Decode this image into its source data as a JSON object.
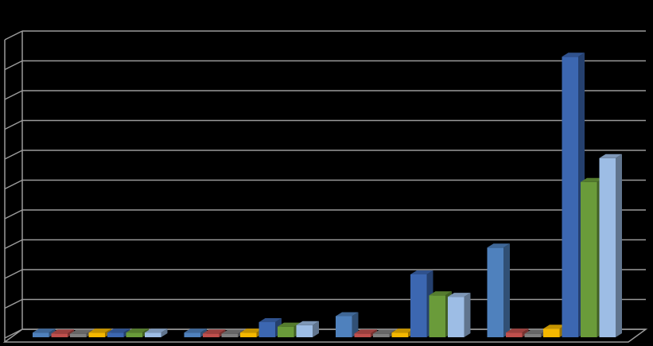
{
  "chart_data": {
    "type": "bar",
    "style": "3d-clustered",
    "title": "",
    "xlabel": "",
    "ylabel": "",
    "categories": [
      "",
      "",
      "",
      ""
    ],
    "ylim": [
      0,
      10
    ],
    "grid": true,
    "legend": "none",
    "series": [
      {
        "color": "#4f81bd",
        "values": [
          0.05,
          0.05,
          0.6,
          2.9
        ]
      },
      {
        "color": "#c0504d",
        "values": [
          0.02,
          0.02,
          0.02,
          0.05
        ]
      },
      {
        "color": "#7f7f7f",
        "values": [
          0.01,
          0.01,
          0.01,
          0.01
        ]
      },
      {
        "color": "#f5b800",
        "values": [
          0.05,
          0.05,
          0.05,
          0.18
        ]
      },
      {
        "color": "#3c67b1",
        "values": [
          0.05,
          0.4,
          2.0,
          9.3
        ]
      },
      {
        "color": "#6a9b3a",
        "values": [
          0.05,
          0.25,
          1.3,
          5.1
        ]
      },
      {
        "color": "#9dbde5",
        "values": [
          0.05,
          0.3,
          1.25,
          5.9
        ]
      }
    ]
  }
}
